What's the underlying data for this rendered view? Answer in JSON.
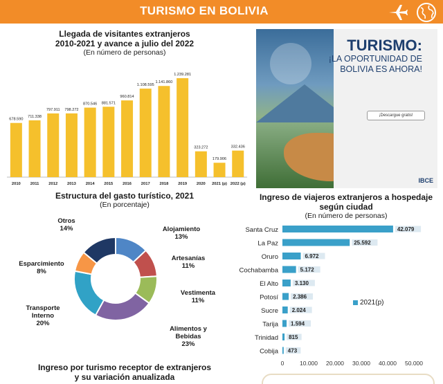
{
  "header": {
    "title": "TURISMO EN BOLIVIA",
    "plane_icon": "airplane-icon",
    "globe_icon": "globe-icon"
  },
  "promo": {
    "title": "TURISMO:",
    "subtitle_line1": "¡LA OPORTUNIDAD DE",
    "subtitle_line2": "BOLIVIA ES AHORA!",
    "button": "¡Descargue gratis!",
    "logo": "IBCE"
  },
  "colors": {
    "header": "#f28c28",
    "bars": "#f5c02c",
    "city_bars": "#3aa0c9"
  },
  "chart_data": [
    {
      "type": "bar",
      "title": "Llegada de visitantes extranjeros",
      "subtitle": "2010-2021 y avance a julio del 2022",
      "note": "(En número de personas)",
      "categories": [
        "2010",
        "2011",
        "2012",
        "2013",
        "2014",
        "2015",
        "2016",
        "2017",
        "2018",
        "2019",
        "2020",
        "2021 (p)",
        "2022 (p)"
      ],
      "values": [
        678590,
        711338,
        797911,
        798272,
        870546,
        881571,
        960814,
        1108595,
        1141860,
        1239281,
        323272,
        179906,
        332436
      ],
      "value_labels": [
        "678.590",
        "711.338",
        "797.911",
        "798.272",
        "870.546",
        "881.571",
        "960.814",
        "1.108.595",
        "1.141.860",
        "1.239.281",
        "323.272",
        "179.906",
        "332.436"
      ],
      "ylim": [
        0,
        1300000
      ]
    },
    {
      "type": "pie",
      "title": "Estructura del gasto turístico, 2021",
      "note": "(En porcentaje)",
      "slices": [
        {
          "label": "Alojamiento",
          "value": 13,
          "display": "13%",
          "color": "#4f86c6"
        },
        {
          "label": "Artesanías",
          "value": 11,
          "display": "11%",
          "color": "#c0504d"
        },
        {
          "label": "Vestimenta",
          "value": 11,
          "display": "11%",
          "color": "#9bbb59"
        },
        {
          "label": "Alimentos y Bebidas",
          "value": 23,
          "display": "23%",
          "color": "#8064a2"
        },
        {
          "label": "Transporte Interno",
          "value": 20,
          "display": "20%",
          "color": "#31a2c6"
        },
        {
          "label": "Esparcimiento",
          "value": 8,
          "display": "8%",
          "color": "#f79646"
        },
        {
          "label": "Otros",
          "value": 14,
          "display": "14%",
          "color": "#1f3864"
        }
      ]
    },
    {
      "type": "bar",
      "orientation": "horizontal",
      "title": "Ingreso de viajeros extranjeros a hospedaje según ciudad",
      "note": "(En número de personas)",
      "categories": [
        "Santa Cruz",
        "La Paz",
        "Oruro",
        "Cochabamba",
        "El Alto",
        "Potosí",
        "Sucre",
        "Tarija",
        "Trinidad",
        "Cobija"
      ],
      "series": [
        {
          "name": "2021(p)",
          "values": [
            42079,
            25592,
            6972,
            5172,
            3130,
            2386,
            2024,
            1594,
            815,
            473
          ],
          "value_labels": [
            "42.079",
            "25.592",
            "6.972",
            "5.172",
            "3.130",
            "2.386",
            "2.024",
            "1.594",
            "815",
            "473"
          ]
        }
      ],
      "xticks": [
        "0",
        "10.000",
        "20.000",
        "30.000",
        "40.000",
        "50.000"
      ],
      "xlim": [
        0,
        50000
      ]
    }
  ],
  "bottom": {
    "title_line1": "Ingreso por turismo receptor de extranjeros",
    "title_line2": "y su variación anualizada"
  }
}
